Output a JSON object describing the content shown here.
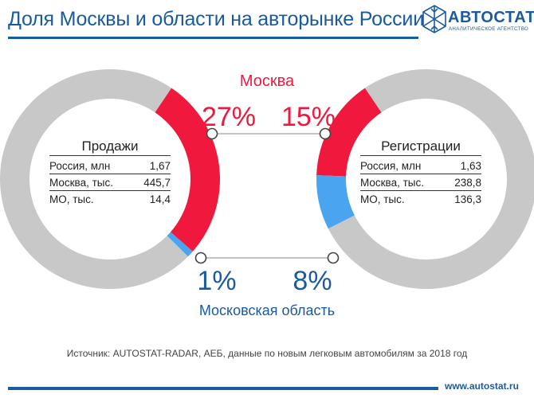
{
  "header": {
    "title": "Доля Москвы и области на авторынке России"
  },
  "logo": {
    "name": "АВТОСТАТ",
    "subtitle": "АНАЛИТИЧЕСКОЕ АГЕНТСТВО",
    "icon": "snowflake-logo-icon"
  },
  "chart_data": {
    "type": "pie",
    "title": "",
    "top_label": "Москва",
    "bottom_label": "Московская область",
    "colors": {
      "moscow": "#f0183c",
      "mo": "#4aa4f0",
      "rest": "#c8c8c8",
      "accent": "#1a5a9e"
    },
    "charts": [
      {
        "name": "Продажи",
        "moscow_pct_label": "27%",
        "mo_pct_label": "1%",
        "values": {
          "moscow": 27,
          "mo": 1,
          "rest": 72
        }
      },
      {
        "name": "Регистрации",
        "moscow_pct_label": "15%",
        "mo_pct_label": "8%",
        "values": {
          "moscow": 15,
          "mo": 8,
          "rest": 77
        }
      }
    ]
  },
  "tables": {
    "sales": {
      "title": "Продажи",
      "rows": [
        {
          "label": "Россия, млн",
          "value": "1,67"
        },
        {
          "label": "Москва, тыс.",
          "value": "445,7"
        },
        {
          "label": "МО, тыс.",
          "value": "14,4"
        }
      ]
    },
    "registrations": {
      "title": "Регистрации",
      "rows": [
        {
          "label": "Россия, млн",
          "value": "1,63"
        },
        {
          "label": "Москва, тыс.",
          "value": "238,8"
        },
        {
          "label": "МО, тыс.",
          "value": "136,3"
        }
      ]
    }
  },
  "source": "Источник: AUTOSTAT-RADAR, АЕБ, данные по новым легковым автомобилям за 2018 год",
  "footer": {
    "url": "www.autostat.ru"
  }
}
